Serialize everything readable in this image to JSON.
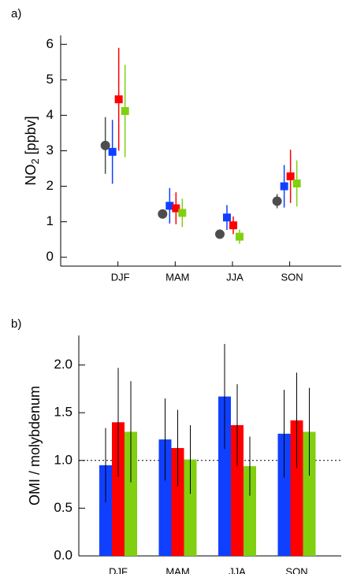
{
  "chart_data": [
    {
      "type": "errorbar",
      "panel_label": "a)",
      "ylabel": {
        "main": "NO",
        "sub": "2",
        "rest": " [ppbv]"
      },
      "categories": [
        "DJF",
        "MAM",
        "JJA",
        "SON"
      ],
      "ylim": [
        -0.25,
        6.25
      ],
      "yticks": [
        0,
        1,
        2,
        3,
        4,
        5,
        6
      ],
      "series": [
        {
          "color": "#4d4d4d",
          "marker": "circle",
          "values": [
            3.15,
            1.22,
            0.65,
            1.58
          ],
          "errors": [
            0.8,
            0.05,
            0.05,
            0.2
          ]
        },
        {
          "color": "#1040ff",
          "marker": "square",
          "values": [
            2.97,
            1.45,
            1.12,
            2.0
          ],
          "errors": [
            0.9,
            0.5,
            0.35,
            0.6
          ]
        },
        {
          "color": "#ff0000",
          "marker": "square",
          "values": [
            4.45,
            1.38,
            0.9,
            2.28
          ],
          "errors": [
            1.45,
            0.45,
            0.25,
            0.75
          ]
        },
        {
          "color": "#80d010",
          "marker": "square",
          "values": [
            4.12,
            1.25,
            0.58,
            2.08
          ],
          "errors": [
            1.3,
            0.4,
            0.2,
            0.65
          ]
        }
      ]
    },
    {
      "type": "bar",
      "panel_label": "b)",
      "ylabel": "OMI / molybdenum",
      "categories": [
        "DJF",
        "MAM",
        "JJA",
        "SON"
      ],
      "ylim": [
        0,
        2.31
      ],
      "yticks": [
        {
          "value": 0,
          "label": "0.0"
        },
        {
          "value": 0.5,
          "label": "0.5"
        },
        {
          "value": 1,
          "label": "1.0"
        },
        {
          "value": 1.5,
          "label": "1.5"
        },
        {
          "value": 2,
          "label": "2.0"
        }
      ],
      "hline": 1,
      "series": [
        {
          "color": "#1040ff",
          "values": [
            0.95,
            1.22,
            1.67,
            1.28
          ],
          "errors": [
            0.39,
            0.43,
            0.55,
            0.46
          ]
        },
        {
          "color": "#ff0000",
          "values": [
            1.4,
            1.13,
            1.37,
            1.42
          ],
          "errors": [
            0.57,
            0.4,
            0.43,
            0.5
          ]
        },
        {
          "color": "#80d010",
          "values": [
            1.3,
            1.01,
            0.94,
            1.3
          ],
          "errors": [
            0.53,
            0.36,
            0.31,
            0.46
          ]
        }
      ]
    }
  ]
}
